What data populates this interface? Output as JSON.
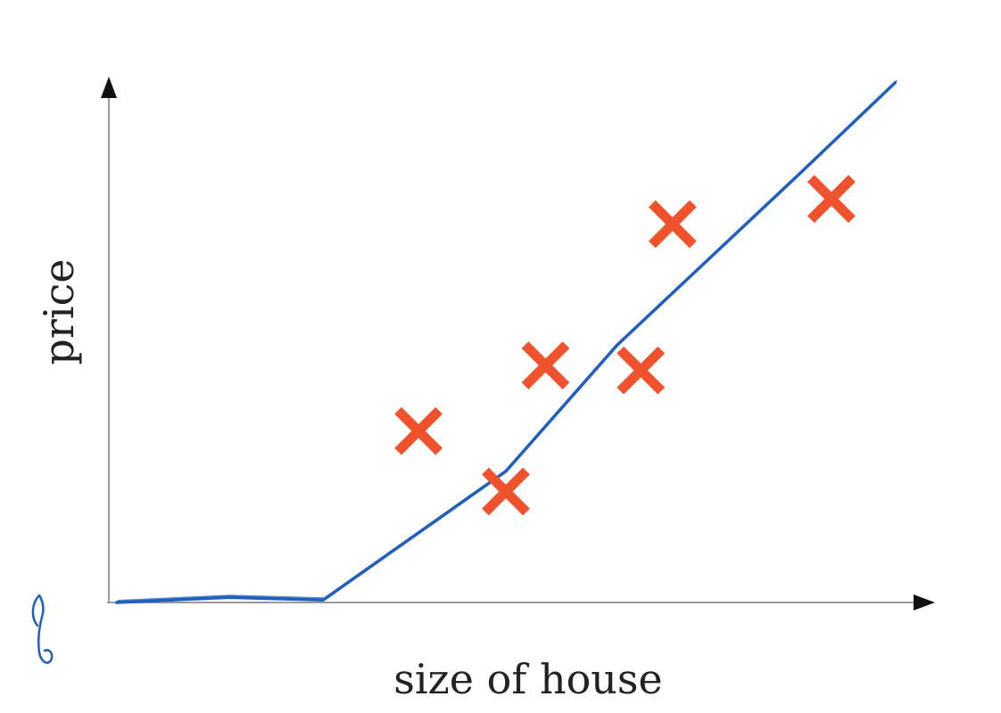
{
  "chart_data": {
    "type": "scatter",
    "xlabel": "size of house",
    "ylabel": "price",
    "xlim": [
      0,
      10
    ],
    "ylim": [
      0,
      10
    ],
    "grid": false,
    "series": [
      {
        "kind": "scatter",
        "marker": "x",
        "color": "#f0522d",
        "points": [
          {
            "x": 3.9,
            "y": 3.4
          },
          {
            "x": 5.0,
            "y": 2.2
          },
          {
            "x": 5.5,
            "y": 4.7
          },
          {
            "x": 6.7,
            "y": 4.6
          },
          {
            "x": 7.1,
            "y": 7.5
          },
          {
            "x": 9.1,
            "y": 8.0
          }
        ]
      },
      {
        "kind": "line",
        "color": "#1f5fbf",
        "points": [
          {
            "x": 0.1,
            "y": 0.0
          },
          {
            "x": 1.5,
            "y": 0.1
          },
          {
            "x": 2.7,
            "y": 0.05
          },
          {
            "x": 5.0,
            "y": 2.6
          },
          {
            "x": 6.4,
            "y": 5.1
          },
          {
            "x": 8.7,
            "y": 8.5
          },
          {
            "x": 9.9,
            "y": 10.3
          }
        ]
      }
    ],
    "annotations": [
      {
        "kind": "pen-squiggle",
        "color": "#1f5fbf"
      }
    ]
  }
}
